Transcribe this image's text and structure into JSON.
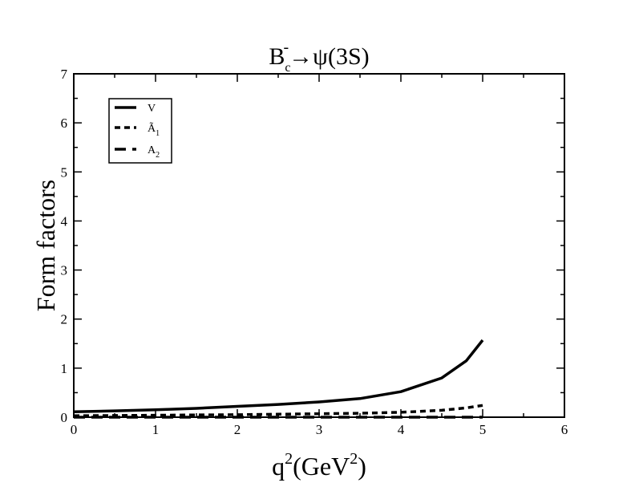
{
  "chart_data": {
    "type": "line",
    "title": {
      "main": "B",
      "superscript": "-",
      "subscript": "c",
      "arrow": "→",
      "rest": "ψ(3S)"
    },
    "xlabel": {
      "q": "q",
      "sup": "2",
      "open": "(GeV",
      "unit_sup": "2",
      "close": ")"
    },
    "ylabel": "Form factors",
    "xlim": [
      0,
      6
    ],
    "ylim": [
      0,
      7
    ],
    "x_ticks": [
      "0",
      "1",
      "2",
      "3",
      "4",
      "5",
      "6"
    ],
    "y_ticks": [
      "0",
      "1",
      "2",
      "3",
      "4",
      "5",
      "6",
      "7"
    ],
    "grid": false,
    "legend_position": "top-left",
    "series": [
      {
        "name": "V",
        "label_main": "V",
        "label_sub": "",
        "style": "solid",
        "x": [
          0,
          0.5,
          1,
          1.5,
          2,
          2.5,
          3,
          3.5,
          4,
          4.5,
          4.8,
          5.0
        ],
        "values": [
          0.11,
          0.13,
          0.15,
          0.18,
          0.22,
          0.26,
          0.31,
          0.38,
          0.52,
          0.8,
          1.15,
          1.57
        ]
      },
      {
        "name": "Ã₁",
        "label_main": "Ã",
        "label_sub": "1",
        "style": "dotted",
        "x": [
          0,
          0.5,
          1,
          1.5,
          2,
          2.5,
          3,
          3.5,
          4,
          4.5,
          4.8,
          5.0
        ],
        "values": [
          0.03,
          0.035,
          0.04,
          0.045,
          0.05,
          0.06,
          0.07,
          0.08,
          0.1,
          0.14,
          0.19,
          0.24
        ]
      },
      {
        "name": "A₂",
        "label_main": "A",
        "label_sub": "2",
        "style": "dashed",
        "x": [
          0,
          1,
          2,
          3,
          4,
          5
        ],
        "values": [
          0.0,
          0.0,
          0.0,
          0.0,
          0.0,
          0.0
        ]
      }
    ]
  }
}
